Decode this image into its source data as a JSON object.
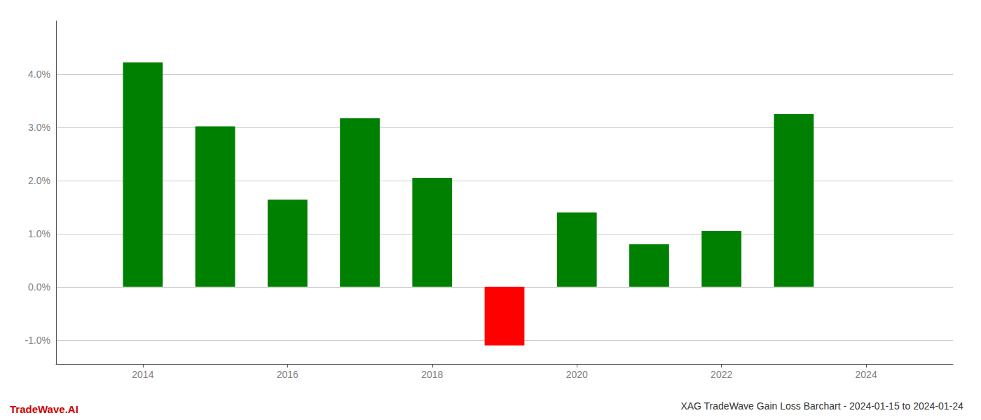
{
  "chart_data": {
    "type": "bar",
    "title": "XAG TradeWave Gain Loss Barchart - 2024-01-15 to 2024-01-24",
    "annotations": [
      "TradeWave.AI"
    ],
    "x": [
      2014,
      2015,
      2016,
      2017,
      2018,
      2019,
      2020,
      2021,
      2022,
      2023
    ],
    "values": [
      0.0422,
      0.0302,
      0.0164,
      0.0317,
      0.0205,
      -0.011,
      0.014,
      0.008,
      0.0105,
      0.0325
    ],
    "colors": [
      "#008000",
      "#008000",
      "#008000",
      "#008000",
      "#008000",
      "#ff0000",
      "#008000",
      "#008000",
      "#008000",
      "#008000"
    ],
    "xlim": [
      2012.8,
      2025.2
    ],
    "xticks": [
      2014,
      2016,
      2018,
      2020,
      2022,
      2024
    ],
    "ylim": [
      -0.0145,
      0.05
    ],
    "yticks": [
      {
        "value": -0.01,
        "label": "-1.0%"
      },
      {
        "value": 0.0,
        "label": "0.0%"
      },
      {
        "value": 0.01,
        "label": "1.0%"
      },
      {
        "value": 0.02,
        "label": "2.0%"
      },
      {
        "value": 0.03,
        "label": "3.0%"
      },
      {
        "value": 0.04,
        "label": "4.0%"
      }
    ],
    "grid": true
  }
}
